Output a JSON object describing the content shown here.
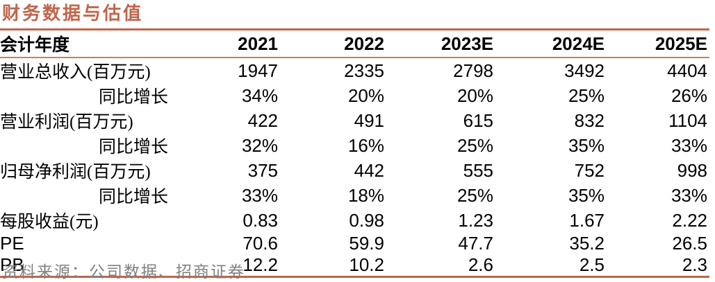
{
  "title": "财务数据与估值",
  "colors": {
    "accent": "#C0654A",
    "header_rule": "#CB7D5C",
    "source_text": "#808080",
    "body_text": "#000000"
  },
  "table": {
    "header": {
      "label": "会计年度",
      "years": [
        "2021",
        "2022",
        "2023E",
        "2024E",
        "2025E"
      ]
    },
    "rows": [
      {
        "label": "营业总收入(百万元)",
        "indent": false,
        "values": [
          "1947",
          "2335",
          "2798",
          "3492",
          "4404"
        ]
      },
      {
        "label": "同比增长",
        "indent": true,
        "values": [
          "34%",
          "20%",
          "20%",
          "25%",
          "26%"
        ]
      },
      {
        "label": "营业利润(百万元)",
        "indent": false,
        "values": [
          "422",
          "491",
          "615",
          "832",
          "1104"
        ]
      },
      {
        "label": "同比增长",
        "indent": true,
        "values": [
          "32%",
          "16%",
          "25%",
          "35%",
          "33%"
        ]
      },
      {
        "label": "归母净利润(百万元)",
        "indent": false,
        "values": [
          "375",
          "442",
          "555",
          "752",
          "998"
        ]
      },
      {
        "label": "同比增长",
        "indent": true,
        "values": [
          "33%",
          "18%",
          "25%",
          "35%",
          "33%"
        ]
      },
      {
        "label": "每股收益(元)",
        "indent": false,
        "values": [
          "0.83",
          "0.98",
          "1.23",
          "1.67",
          "2.22"
        ]
      },
      {
        "label": "PE",
        "indent": false,
        "values": [
          "70.6",
          "59.9",
          "47.7",
          "35.2",
          "26.5"
        ]
      },
      {
        "label": "PB",
        "indent": false,
        "values": [
          "12.2",
          "10.2",
          "2.6",
          "2.5",
          "2.3"
        ]
      }
    ]
  },
  "source": "资料来源：公司数据、招商证券"
}
